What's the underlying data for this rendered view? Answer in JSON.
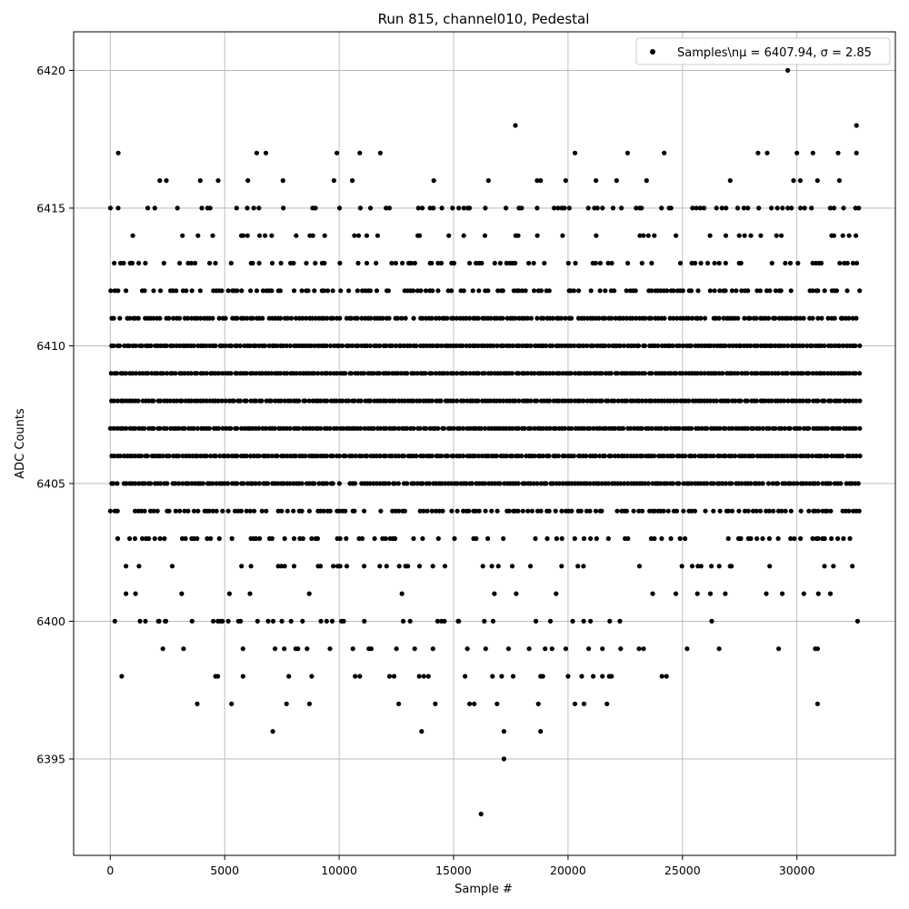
{
  "chart_data": {
    "type": "scatter",
    "title": "Run 815, channel010, Pedestal",
    "xlabel": "Sample #",
    "ylabel": "ADC Counts",
    "xlim": [
      -1600,
      34300
    ],
    "ylim": [
      6391.5,
      6421.4
    ],
    "xticks": [
      0,
      5000,
      10000,
      15000,
      20000,
      25000,
      30000
    ],
    "yticks": [
      6395,
      6400,
      6405,
      6410,
      6415,
      6420
    ],
    "grid": true,
    "legend": {
      "position": "top-right",
      "label": "Samples\\nμ = 6407.94, σ = 2.85"
    },
    "series": [
      {
        "name": "Samples\\nμ = 6407.94, σ = 2.85",
        "color": "#000000",
        "x_range": [
          0,
          32767
        ],
        "mean": 6407.94,
        "sigma": 2.85,
        "dense_levels": [
          6401,
          6402,
          6403,
          6404,
          6405,
          6406,
          6407,
          6408,
          6409,
          6410,
          6411,
          6412,
          6413,
          6414
        ],
        "outliers": [
          [
            200,
            6400
          ],
          [
            500,
            6398
          ],
          [
            350,
            6417
          ],
          [
            1300,
            6400
          ],
          [
            2100,
            6400
          ],
          [
            2300,
            6399
          ],
          [
            2400,
            6400
          ],
          [
            3200,
            6399
          ],
          [
            3800,
            6397
          ],
          [
            4500,
            6400
          ],
          [
            4600,
            6398
          ],
          [
            4700,
            6398
          ],
          [
            4900,
            6400
          ],
          [
            5300,
            6397
          ],
          [
            5600,
            6400
          ],
          [
            5800,
            6399
          ],
          [
            5800,
            6398
          ],
          [
            6400,
            6417
          ],
          [
            6800,
            6417
          ],
          [
            6900,
            6400
          ],
          [
            7100,
            6396
          ],
          [
            7200,
            6399
          ],
          [
            7500,
            6400
          ],
          [
            7600,
            6399
          ],
          [
            7700,
            6397
          ],
          [
            7800,
            6398
          ],
          [
            7900,
            6400
          ],
          [
            8100,
            6399
          ],
          [
            8200,
            6399
          ],
          [
            8400,
            6400
          ],
          [
            8600,
            6399
          ],
          [
            8700,
            6397
          ],
          [
            8800,
            6398
          ],
          [
            9200,
            6400
          ],
          [
            9600,
            6399
          ],
          [
            9700,
            6400
          ],
          [
            9900,
            6417
          ],
          [
            10100,
            6400
          ],
          [
            10200,
            6400
          ],
          [
            10600,
            6399
          ],
          [
            10700,
            6398
          ],
          [
            10900,
            6398
          ],
          [
            10900,
            6417
          ],
          [
            11100,
            6400
          ],
          [
            11300,
            6399
          ],
          [
            11400,
            6399
          ],
          [
            11800,
            6417
          ],
          [
            12200,
            6398
          ],
          [
            12400,
            6398
          ],
          [
            12500,
            6399
          ],
          [
            12600,
            6397
          ],
          [
            12800,
            6400
          ],
          [
            13100,
            6400
          ],
          [
            13300,
            6399
          ],
          [
            13500,
            6398
          ],
          [
            13600,
            6396
          ],
          [
            13700,
            6398
          ],
          [
            13900,
            6398
          ],
          [
            14100,
            6399
          ],
          [
            14200,
            6397
          ],
          [
            14300,
            6400
          ],
          [
            14600,
            6400
          ],
          [
            15200,
            6400
          ],
          [
            15500,
            6398
          ],
          [
            15600,
            6399
          ],
          [
            15700,
            6397
          ],
          [
            15900,
            6397
          ],
          [
            16200,
            6393
          ],
          [
            16400,
            6399
          ],
          [
            16700,
            6398
          ],
          [
            16900,
            6397
          ],
          [
            17100,
            6398
          ],
          [
            17200,
            6395
          ],
          [
            17200,
            6396
          ],
          [
            17400,
            6399
          ],
          [
            17600,
            6398
          ],
          [
            17700,
            6418
          ],
          [
            18300,
            6399
          ],
          [
            18700,
            6397
          ],
          [
            18800,
            6398
          ],
          [
            18800,
            6396
          ],
          [
            18900,
            6398
          ],
          [
            19000,
            6399
          ],
          [
            19300,
            6399
          ],
          [
            19900,
            6399
          ],
          [
            20000,
            6398
          ],
          [
            20300,
            6397
          ],
          [
            20300,
            6417
          ],
          [
            20600,
            6398
          ],
          [
            20700,
            6397
          ],
          [
            20900,
            6399
          ],
          [
            21100,
            6398
          ],
          [
            21500,
            6398
          ],
          [
            21500,
            6399
          ],
          [
            21700,
            6397
          ],
          [
            21800,
            6398
          ],
          [
            21900,
            6398
          ],
          [
            22300,
            6399
          ],
          [
            22600,
            6417
          ],
          [
            23100,
            6399
          ],
          [
            23300,
            6399
          ],
          [
            24100,
            6398
          ],
          [
            24200,
            6417
          ],
          [
            24300,
            6398
          ],
          [
            25200,
            6399
          ],
          [
            26600,
            6399
          ],
          [
            28300,
            6417
          ],
          [
            28700,
            6417
          ],
          [
            29200,
            6399
          ],
          [
            29600,
            6420
          ],
          [
            30000,
            6417
          ],
          [
            30700,
            6417
          ],
          [
            30800,
            6399
          ],
          [
            30900,
            6399
          ],
          [
            30900,
            6397
          ],
          [
            31800,
            6417
          ],
          [
            32600,
            6417
          ],
          [
            32600,
            6418
          ]
        ]
      }
    ]
  }
}
